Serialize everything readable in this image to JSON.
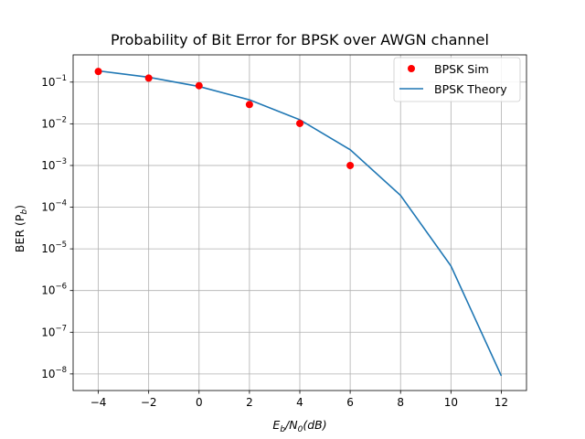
{
  "chart_data": {
    "type": "line",
    "title": "Probability of Bit Error for BPSK over AWGN channel",
    "xlabel": {
      "base": "E",
      "sub1": "b",
      "mid": "/N",
      "sub2": "0",
      "tail": "(dB)"
    },
    "ylabel": {
      "base": "BER (P",
      "sub": "b",
      "tail": ")"
    },
    "xlim": [
      -5,
      13
    ],
    "ylim": [
      4e-09,
      0.45
    ],
    "yscale": "log",
    "grid": true,
    "legend_position": "top-right",
    "x_ticks": [
      {
        "value": -4,
        "label": "−4"
      },
      {
        "value": -2,
        "label": "−2"
      },
      {
        "value": 0,
        "label": "0"
      },
      {
        "value": 2,
        "label": "2"
      },
      {
        "value": 4,
        "label": "4"
      },
      {
        "value": 6,
        "label": "6"
      },
      {
        "value": 8,
        "label": "8"
      },
      {
        "value": 10,
        "label": "10"
      },
      {
        "value": 12,
        "label": "12"
      }
    ],
    "y_ticks": [
      {
        "value": 0.1,
        "base": "10",
        "exp": "−1"
      },
      {
        "value": 0.01,
        "base": "10",
        "exp": "−2"
      },
      {
        "value": 0.001,
        "base": "10",
        "exp": "−3"
      },
      {
        "value": 0.0001,
        "base": "10",
        "exp": "−4"
      },
      {
        "value": 1e-05,
        "base": "10",
        "exp": "−5"
      },
      {
        "value": 1e-06,
        "base": "10",
        "exp": "−6"
      },
      {
        "value": 1e-07,
        "base": "10",
        "exp": "−7"
      },
      {
        "value": 1e-08,
        "base": "10",
        "exp": "−8"
      }
    ],
    "series": [
      {
        "name": "BPSK Sim",
        "kind": "scatter",
        "color": "#ff0000",
        "x": [
          -4,
          -2,
          0,
          2,
          4,
          6
        ],
        "y": [
          0.18,
          0.125,
          0.082,
          0.029,
          0.0102,
          0.001
        ]
      },
      {
        "name": "BPSK Theory",
        "kind": "line",
        "color": "#1f77b4",
        "x": [
          -4,
          -2,
          0,
          2,
          4,
          6,
          8,
          10,
          12
        ],
        "y": [
          0.186,
          0.131,
          0.0786,
          0.0375,
          0.0125,
          0.00239,
          0.000191,
          3.9e-06,
          9e-09
        ]
      }
    ]
  }
}
